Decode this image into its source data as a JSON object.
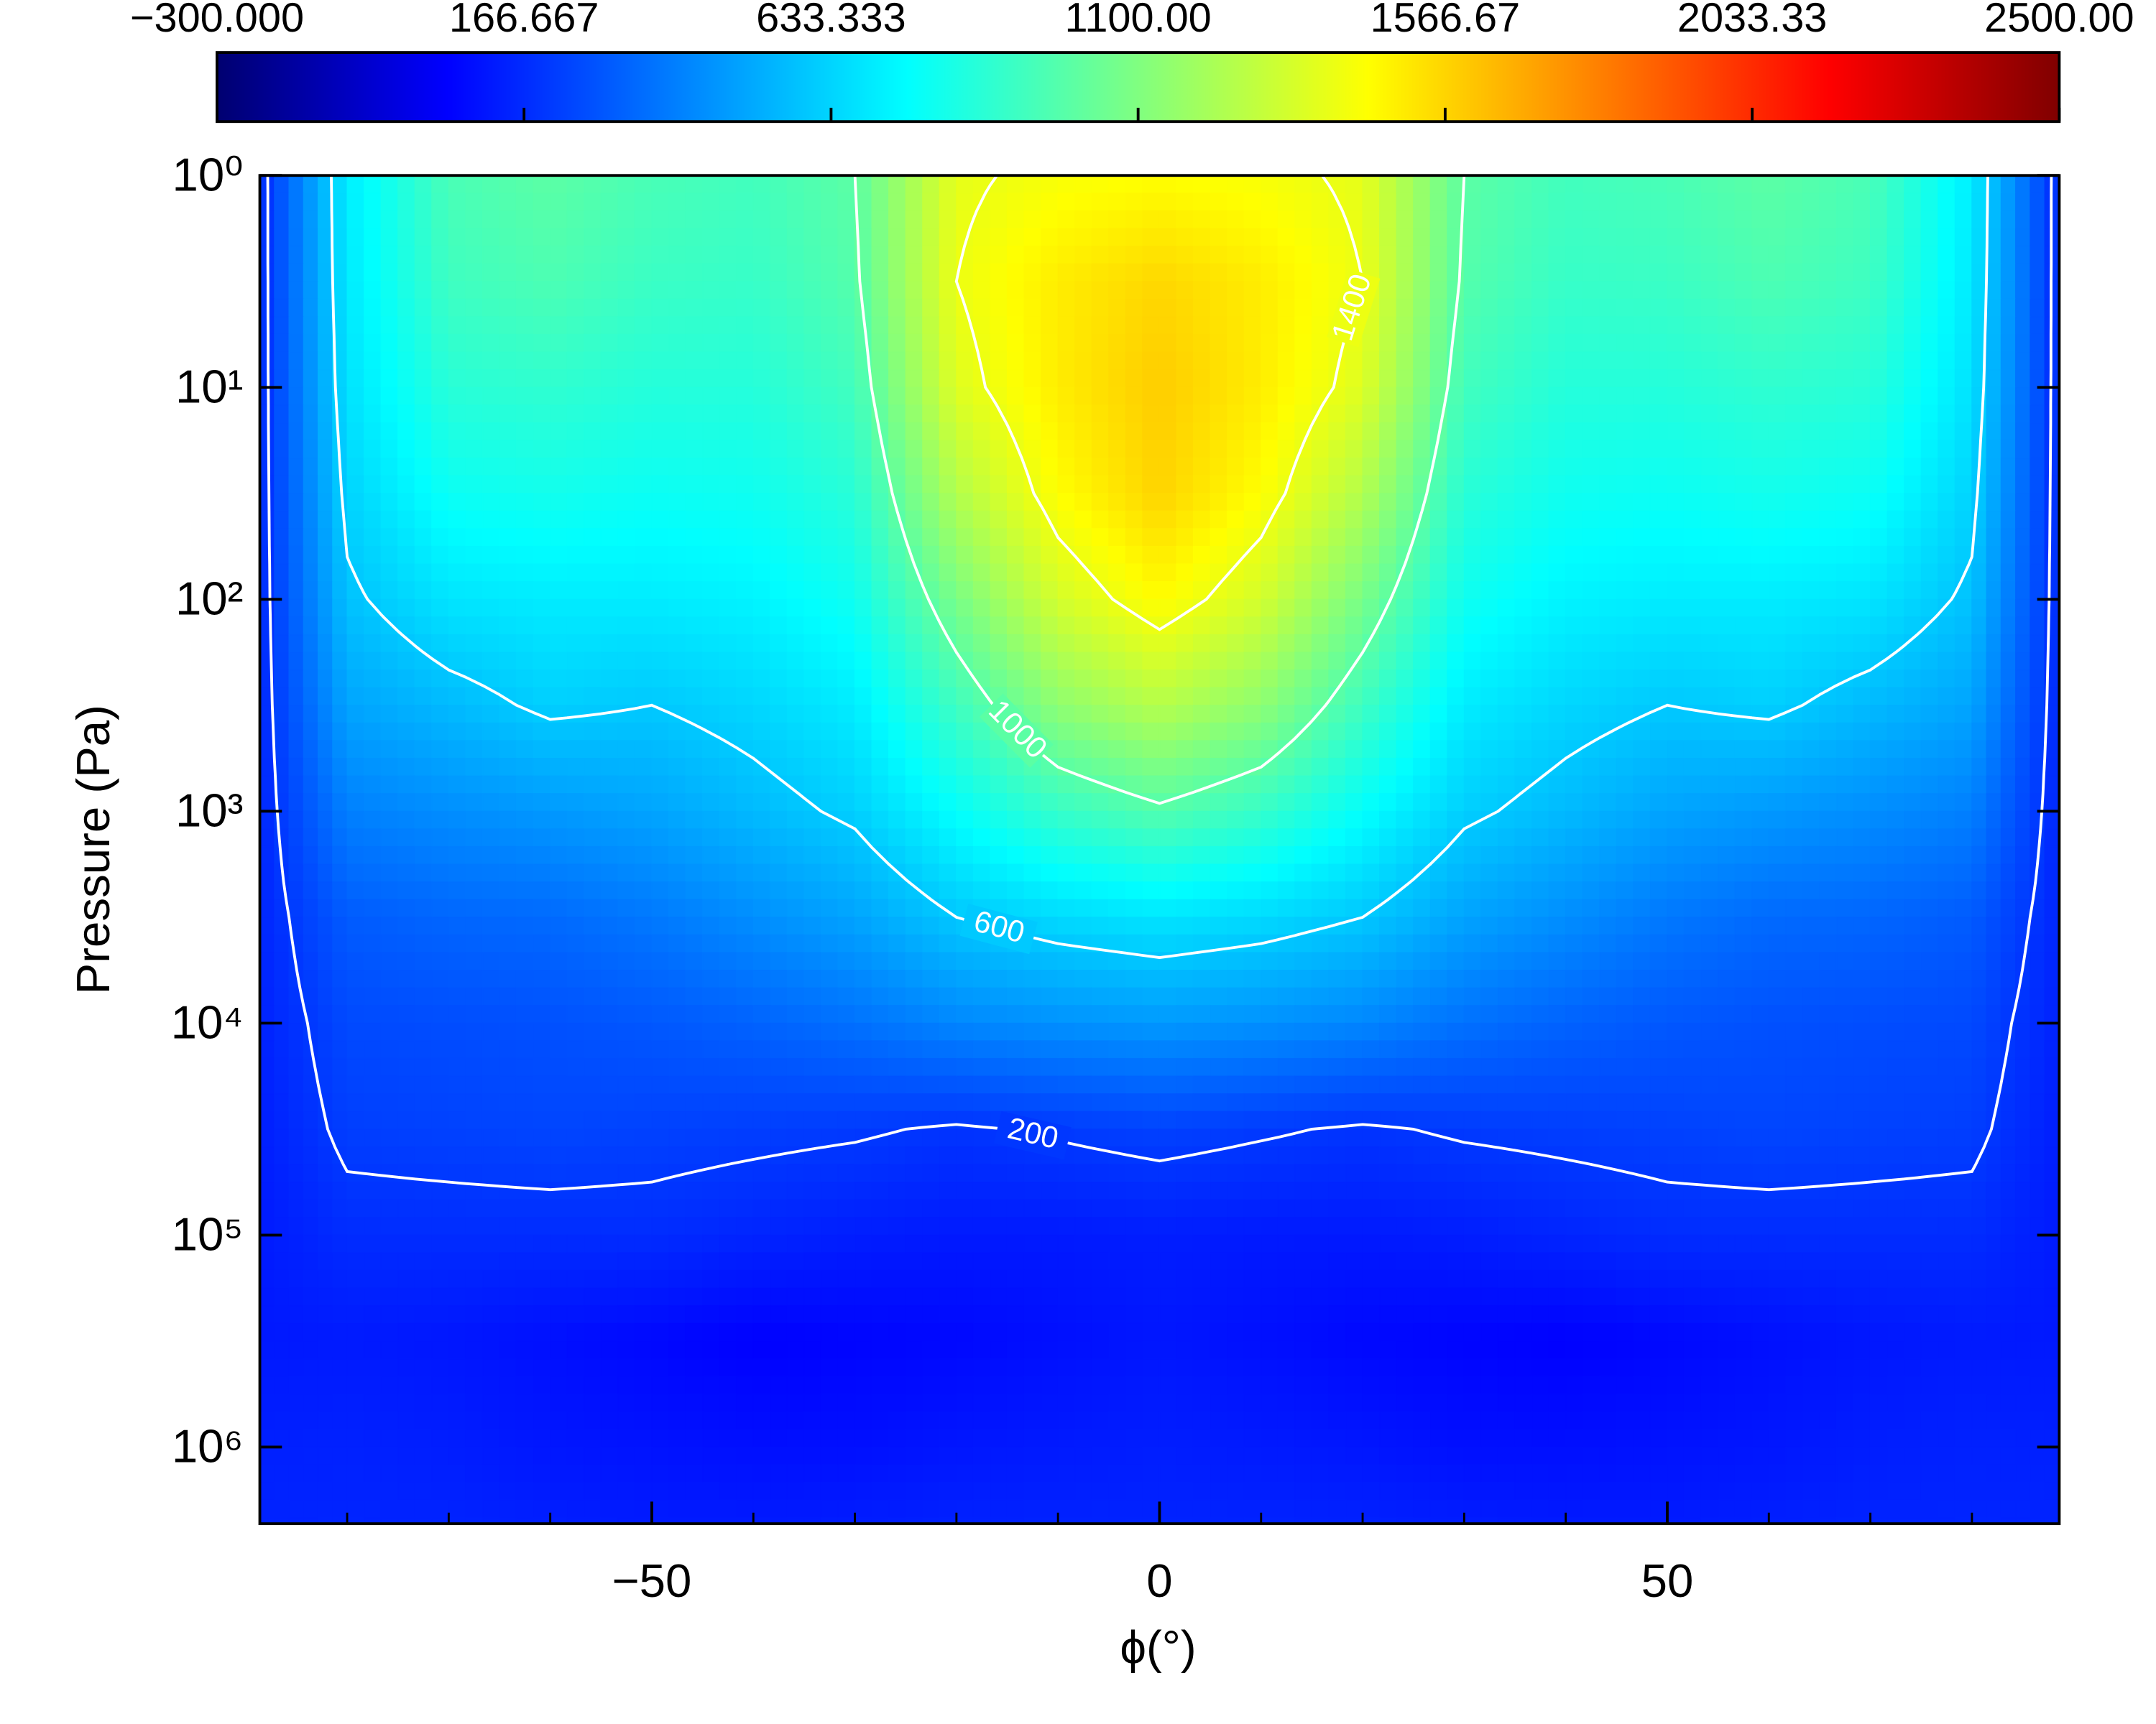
{
  "chart_data": {
    "type": "contour",
    "xlabel": "ϕ(°)",
    "ylabel": "Pressure (Pa)",
    "xlim": [
      -88.6,
      88.6
    ],
    "ylim": [
      1,
      2300000
    ],
    "ylog": true,
    "xticks": [
      {
        "value": -50,
        "label": "−50"
      },
      0,
      50
    ],
    "xminorticks": [
      -80,
      -70,
      -60,
      -40,
      -30,
      -20,
      -10,
      10,
      20,
      30,
      40,
      60,
      70,
      80
    ],
    "yticks": [
      {
        "value": 1,
        "label": "10⁰"
      },
      {
        "value": 10,
        "label": "10¹"
      },
      {
        "value": 100,
        "label": "10²"
      },
      {
        "value": 1000,
        "label": "10³"
      },
      {
        "value": 10000,
        "label": "10⁴"
      },
      {
        "value": 100000,
        "label": "10⁵"
      },
      {
        "value": 1000000,
        "label": "10⁶"
      }
    ],
    "x": [
      -88.6,
      -80,
      -70,
      -60,
      -50,
      -40,
      -30,
      -20,
      -10,
      0,
      10,
      20,
      30,
      40,
      50,
      60,
      70,
      80,
      88.6
    ],
    "y": [
      1,
      3.162,
      10,
      31.62,
      100,
      316.2,
      1000,
      3162,
      10000,
      31620,
      100000,
      316200,
      1000000,
      3162000
    ],
    "z": [
      [
        150,
        700,
        950,
        1000,
        950,
        930,
        1000,
        1380,
        1430,
        1450,
        1430,
        1380,
        1000,
        930,
        950,
        1000,
        950,
        700,
        150
      ],
      [
        150,
        690,
        920,
        960,
        910,
        900,
        980,
        1400,
        1500,
        1560,
        1500,
        1400,
        980,
        900,
        910,
        960,
        920,
        690,
        150
      ],
      [
        150,
        670,
        860,
        880,
        850,
        850,
        930,
        1360,
        1500,
        1590,
        1500,
        1360,
        930,
        850,
        850,
        880,
        860,
        670,
        150
      ],
      [
        150,
        630,
        780,
        800,
        780,
        790,
        860,
        1240,
        1450,
        1570,
        1450,
        1240,
        860,
        790,
        780,
        800,
        780,
        630,
        150
      ],
      [
        150,
        580,
        680,
        700,
        700,
        720,
        790,
        1080,
        1330,
        1460,
        1330,
        1080,
        790,
        720,
        700,
        700,
        680,
        580,
        150
      ],
      [
        150,
        500,
        560,
        620,
        600,
        640,
        700,
        920,
        1140,
        1250,
        1140,
        920,
        700,
        640,
        600,
        620,
        560,
        500,
        150
      ],
      [
        150,
        400,
        440,
        470,
        500,
        560,
        620,
        760,
        900,
        980,
        900,
        760,
        620,
        560,
        500,
        470,
        440,
        400,
        150
      ],
      [
        150,
        300,
        330,
        340,
        380,
        440,
        500,
        600,
        650,
        680,
        650,
        600,
        500,
        440,
        380,
        340,
        330,
        300,
        150
      ],
      [
        140,
        250,
        260,
        270,
        290,
        320,
        360,
        420,
        450,
        470,
        450,
        420,
        360,
        320,
        290,
        270,
        260,
        250,
        140
      ],
      [
        130,
        220,
        230,
        240,
        230,
        220,
        210,
        190,
        210,
        230,
        210,
        190,
        210,
        220,
        230,
        240,
        230,
        220,
        130
      ],
      [
        120,
        170,
        170,
        170,
        170,
        150,
        130,
        120,
        120,
        130,
        120,
        120,
        130,
        150,
        170,
        170,
        170,
        170,
        120
      ],
      [
        115,
        120,
        110,
        90,
        70,
        50,
        60,
        70,
        90,
        110,
        90,
        70,
        60,
        50,
        70,
        90,
        110,
        120,
        115
      ],
      [
        135,
        140,
        130,
        110,
        100,
        90,
        90,
        110,
        120,
        130,
        120,
        110,
        90,
        90,
        100,
        110,
        130,
        140,
        135
      ],
      [
        150,
        150,
        150,
        140,
        130,
        130,
        140,
        150,
        150,
        150,
        150,
        150,
        140,
        130,
        130,
        140,
        150,
        150,
        150
      ]
    ],
    "zlim": [
      -300,
      2500
    ],
    "zticks": [
      {
        "value": -300,
        "label": "−300.000"
      },
      {
        "value": 166.667,
        "label": "166.667"
      },
      {
        "value": 633.333,
        "label": "633.333"
      },
      {
        "value": 1100,
        "label": "1100.00"
      },
      {
        "value": 1566.67,
        "label": "1566.67"
      },
      {
        "value": 2033.33,
        "label": "2033.33"
      },
      {
        "value": 2500,
        "label": "2500.00"
      }
    ],
    "colormap": [
      "#000070",
      "#0000ff",
      "#0080ff",
      "#00ffff",
      "#80ff80",
      "#ffff00",
      "#ff8000",
      "#ff0000",
      "#800000"
    ],
    "contour_levels": [
      200,
      600,
      1000,
      1400
    ],
    "contour_color": "#ffffff"
  }
}
